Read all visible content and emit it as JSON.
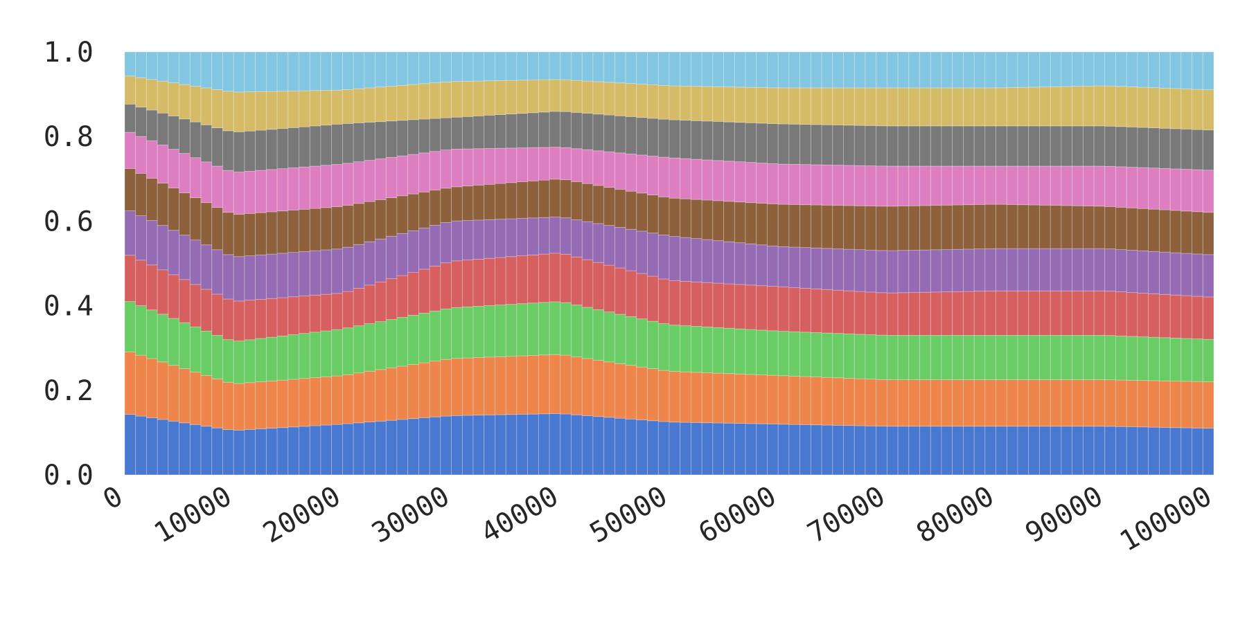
{
  "chart_data": {
    "type": "bar",
    "stacked": true,
    "title": "",
    "xlabel": "",
    "ylabel": "",
    "ylim": [
      0,
      1.0
    ],
    "xlim": [
      0,
      100000
    ],
    "bin_width": 1000,
    "grid": false,
    "legend": "none",
    "yticks": [
      "0.0",
      "0.2",
      "0.4",
      "0.6",
      "0.8",
      "1.0"
    ],
    "xticks": [
      "0",
      "10000",
      "20000",
      "30000",
      "40000",
      "50000",
      "60000",
      "70000",
      "80000",
      "90000",
      "100000"
    ],
    "colors": [
      "#4878d0",
      "#ee854a",
      "#6acc64",
      "#d65f5f",
      "#956cb4",
      "#8c613c",
      "#dc7ec0",
      "#797979",
      "#d5bb67",
      "#82c6e2"
    ],
    "boundaries": [
      [
        0.0,
        0.145,
        0.295,
        0.415,
        0.525,
        0.63,
        0.73,
        0.815,
        0.88,
        0.945,
        1.0
      ],
      [
        10000,
        0.105,
        0.215,
        0.315,
        0.41,
        0.515,
        0.615,
        0.715,
        0.81,
        0.905,
        1.0
      ],
      [
        20000,
        0.12,
        0.235,
        0.345,
        0.43,
        0.535,
        0.635,
        0.735,
        0.83,
        0.91,
        1.0
      ],
      [
        30000,
        0.14,
        0.275,
        0.395,
        0.505,
        0.6,
        0.68,
        0.77,
        0.845,
        0.93,
        1.0
      ],
      [
        40000,
        0.145,
        0.285,
        0.41,
        0.525,
        0.61,
        0.7,
        0.775,
        0.86,
        0.935,
        1.0
      ],
      [
        50000,
        0.125,
        0.245,
        0.355,
        0.46,
        0.565,
        0.655,
        0.75,
        0.84,
        0.92,
        1.0
      ],
      [
        60000,
        0.12,
        0.235,
        0.34,
        0.445,
        0.54,
        0.64,
        0.735,
        0.83,
        0.915,
        1.0
      ],
      [
        70000,
        0.115,
        0.225,
        0.33,
        0.43,
        0.53,
        0.635,
        0.73,
        0.825,
        0.915,
        1.0
      ],
      [
        80000,
        0.115,
        0.225,
        0.33,
        0.435,
        0.535,
        0.64,
        0.73,
        0.825,
        0.915,
        1.0
      ],
      [
        90000,
        0.115,
        0.225,
        0.33,
        0.435,
        0.535,
        0.635,
        0.73,
        0.825,
        0.92,
        1.0
      ],
      [
        100000,
        0.11,
        0.22,
        0.32,
        0.42,
        0.52,
        0.62,
        0.72,
        0.815,
        0.91,
        1.0
      ]
    ]
  }
}
